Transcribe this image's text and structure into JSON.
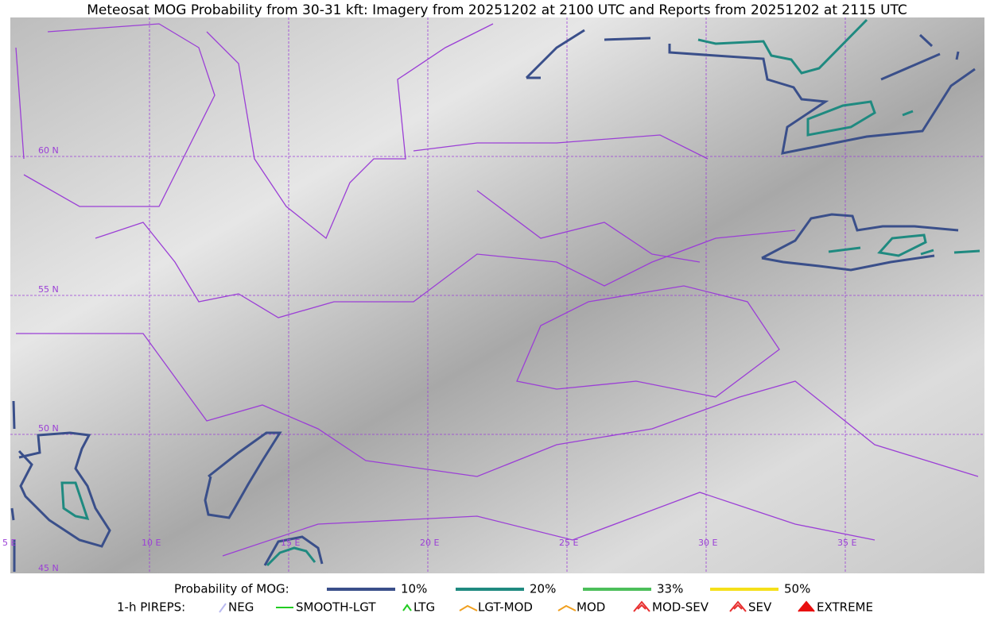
{
  "title": "Meteosat MOG Probability from 30-31 kft: Imagery from 20251202 at 2100 UTC and Reports from 20251202 at 2115 UTC",
  "map": {
    "lat_labels": [
      "60 N",
      "55 N",
      "50 N",
      "45 N"
    ],
    "lon_labels": [
      "5 E",
      "10 E",
      "15 E",
      "20 E",
      "25 E",
      "30 E",
      "35 E"
    ]
  },
  "legend": {
    "probability": {
      "title": "Probability of MOG:",
      "items": [
        {
          "label": "10%",
          "color": "#3a4f8a"
        },
        {
          "label": "20%",
          "color": "#1f8a80"
        },
        {
          "label": "33%",
          "color": "#4cbf5a"
        },
        {
          "label": "50%",
          "color": "#f5e01a"
        }
      ]
    },
    "pireps": {
      "title": "1-h PIREPS:",
      "items": [
        {
          "label": "NEG",
          "color": "#b9b9f0"
        },
        {
          "label": "SMOOTH-LGT",
          "color": "#22cc22"
        },
        {
          "label": "LTG",
          "color": "#22cc22"
        },
        {
          "label": "LGT-MOD",
          "color": "#f0a020"
        },
        {
          "label": "MOD",
          "color": "#f0a020"
        },
        {
          "label": "MOD-SEV",
          "color": "#e83030"
        },
        {
          "label": "SEV",
          "color": "#e83030"
        },
        {
          "label": "EXTREME",
          "color": "#e81010"
        }
      ]
    }
  }
}
